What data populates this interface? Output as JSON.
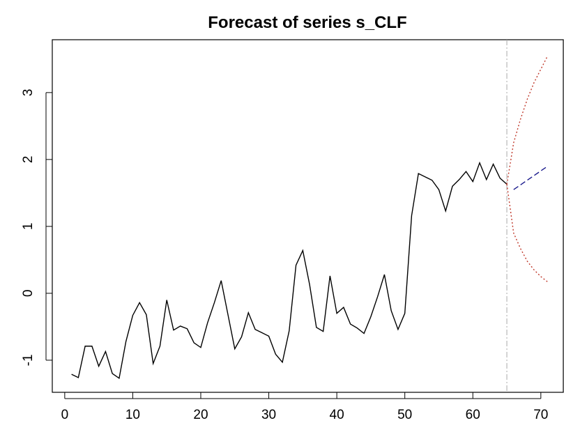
{
  "chart_data": {
    "type": "line",
    "title": "Forecast of series s_CLF",
    "series": [
      {
        "name": "s_CLF",
        "color": "#000000",
        "dash": "none",
        "x": [
          1,
          2,
          3,
          4,
          5,
          6,
          7,
          8,
          9,
          10,
          11,
          12,
          13,
          14,
          15,
          16,
          17,
          18,
          19,
          20,
          21,
          22,
          23,
          24,
          25,
          26,
          27,
          28,
          29,
          30,
          31,
          32,
          33,
          34,
          35,
          36,
          37,
          38,
          39,
          40,
          41,
          42,
          43,
          44,
          45,
          46,
          47,
          48,
          49,
          50,
          51,
          52,
          53,
          54,
          55,
          56,
          57,
          58,
          59,
          60,
          61,
          62,
          63,
          64,
          65
        ],
        "values": [
          -1.21,
          -1.26,
          -0.79,
          -0.79,
          -1.09,
          -0.87,
          -1.2,
          -1.27,
          -0.72,
          -0.33,
          -0.14,
          -0.32,
          -1.05,
          -0.79,
          -0.1,
          -0.55,
          -0.49,
          -0.53,
          -0.74,
          -0.81,
          -0.44,
          -0.14,
          0.19,
          -0.32,
          -0.83,
          -0.65,
          -0.29,
          -0.54,
          -0.59,
          -0.64,
          -0.91,
          -1.03,
          -0.56,
          0.42,
          0.64,
          0.13,
          -0.51,
          -0.57,
          0.26,
          -0.3,
          -0.21,
          -0.46,
          -0.52,
          -0.6,
          -0.35,
          -0.05,
          0.28,
          -0.26,
          -0.54,
          -0.3,
          1.16,
          1.79,
          1.74,
          1.69,
          1.55,
          1.23,
          1.6,
          1.7,
          1.82,
          1.67,
          1.95,
          1.7,
          1.93,
          1.72,
          1.63
        ]
      },
      {
        "name": "forecast",
        "color": "#1a1a8c",
        "dash": "8 4",
        "x": [
          66,
          67,
          68,
          69,
          70,
          71
        ],
        "values": [
          1.55,
          1.62,
          1.69,
          1.76,
          1.83,
          1.9
        ]
      },
      {
        "name": "upper",
        "color": "#c0392b",
        "dash": "2 3",
        "x": [
          65,
          66,
          67,
          68,
          69,
          70,
          71
        ],
        "values": [
          1.63,
          2.25,
          2.6,
          2.9,
          3.15,
          3.35,
          3.55
        ]
      },
      {
        "name": "lower",
        "color": "#c0392b",
        "dash": "2 3",
        "x": [
          65,
          66,
          67,
          68,
          69,
          70,
          71
        ],
        "values": [
          1.63,
          0.9,
          0.67,
          0.48,
          0.35,
          0.25,
          0.17
        ]
      }
    ],
    "vline": 65,
    "xlim": [
      -1.83,
      73.3
    ],
    "ylim": [
      -1.48,
      3.79
    ],
    "xticks": [
      0,
      10,
      20,
      30,
      40,
      50,
      60,
      70
    ],
    "yticks": [
      -1,
      0,
      1,
      2,
      3
    ]
  }
}
